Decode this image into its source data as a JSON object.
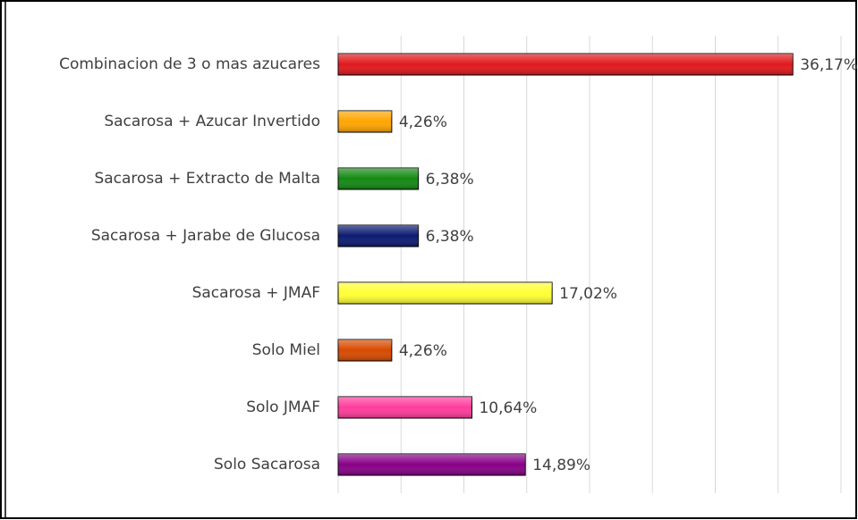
{
  "chart_data": {
    "type": "barh",
    "categories": [
      "Combinacion de 3 o mas azucares",
      "Sacarosa + Azucar Invertido",
      "Sacarosa + Extracto de Malta",
      "Sacarosa + Jarabe de Glucosa",
      "Sacarosa + JMAF",
      "Solo Miel",
      "Solo JMAF",
      "Solo Sacarosa"
    ],
    "values": [
      36.17,
      4.26,
      6.38,
      6.38,
      17.02,
      4.26,
      10.64,
      14.89
    ],
    "value_labels": [
      "36,17%",
      "4,26%",
      "6,38%",
      "6,38%",
      "17,02%",
      "4,26%",
      "10,64%",
      "14,89%"
    ],
    "colors": [
      "#e0181c",
      "#ffa500",
      "#138a13",
      "#0b1a72",
      "#ffff33",
      "#d84a00",
      "#ff3c9c",
      "#880088"
    ],
    "xlim": [
      0,
      40
    ],
    "xticks": [
      0,
      5,
      10,
      15,
      20,
      25,
      30,
      35,
      40
    ],
    "grid": true
  }
}
